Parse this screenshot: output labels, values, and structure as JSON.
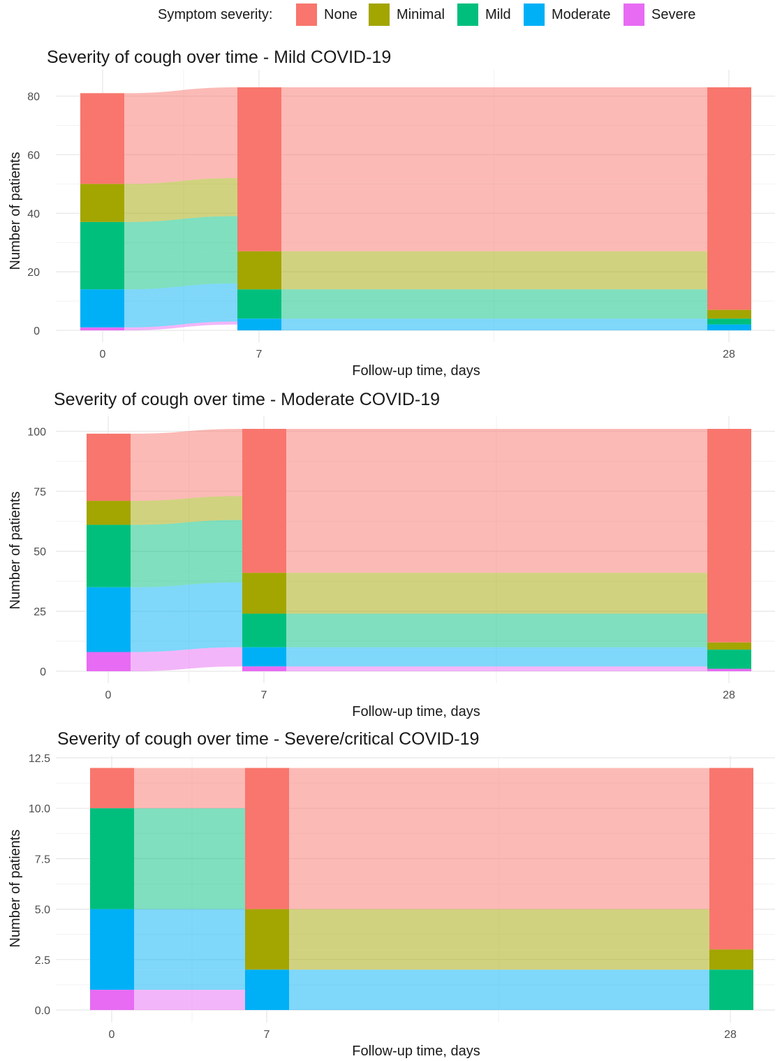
{
  "legend": {
    "title": "Symptom severity:",
    "items": [
      {
        "label": "None",
        "color": "#F8766D"
      },
      {
        "label": "Minimal",
        "color": "#A3A500"
      },
      {
        "label": "Mild",
        "color": "#00BF7D"
      },
      {
        "label": "Moderate",
        "color": "#00B0F6"
      },
      {
        "label": "Severe",
        "color": "#E76BF3"
      }
    ]
  },
  "chart_data": [
    {
      "type": "alluvial",
      "title": "Severity of cough over time - Mild COVID-19",
      "xlabel": "Follow-up time, days",
      "ylabel": "Number of patients",
      "x": [
        0,
        7,
        28
      ],
      "ylim": [
        0,
        83
      ],
      "yticks": [
        "0",
        "20",
        "40",
        "60",
        "80"
      ],
      "grid": true,
      "stacks": [
        {
          "day": 0,
          "None": 31,
          "Minimal": 13,
          "Mild": 23,
          "Moderate": 13,
          "Severe": 1
        },
        {
          "day": 7,
          "None": 56,
          "Minimal": 13,
          "Mild": 10,
          "Moderate": 4,
          "Severe": 0
        },
        {
          "day": 28,
          "None": 76,
          "Minimal": 3,
          "Mild": 2,
          "Moderate": 2,
          "Severe": 0
        }
      ]
    },
    {
      "type": "alluvial",
      "title": "Severity of cough over time - Moderate COVID-19",
      "xlabel": "Follow-up time, days",
      "ylabel": "Number of patients",
      "x": [
        0,
        7,
        28
      ],
      "ylim": [
        0,
        101
      ],
      "yticks": [
        "0",
        "25",
        "50",
        "75",
        "100"
      ],
      "grid": true,
      "stacks": [
        {
          "day": 0,
          "None": 28,
          "Minimal": 10,
          "Mild": 26,
          "Moderate": 27,
          "Severe": 8
        },
        {
          "day": 7,
          "None": 60,
          "Minimal": 17,
          "Mild": 14,
          "Moderate": 8,
          "Severe": 2
        },
        {
          "day": 28,
          "None": 89,
          "Minimal": 3,
          "Mild": 8,
          "Moderate": 0,
          "Severe": 1
        }
      ]
    },
    {
      "type": "alluvial",
      "title": "Severity of cough over time - Severe/critical COVID-19",
      "xlabel": "Follow-up time, days",
      "ylabel": "Number of patients",
      "x": [
        0,
        7,
        28
      ],
      "ylim": [
        0,
        12.5
      ],
      "yticks": [
        "0.0",
        "2.5",
        "5.0",
        "7.5",
        "10.0",
        "12.5"
      ],
      "grid": true,
      "stacks": [
        {
          "day": 0,
          "None": 2,
          "Minimal": 0,
          "Mild": 5,
          "Moderate": 4,
          "Severe": 1
        },
        {
          "day": 7,
          "None": 7,
          "Minimal": 3,
          "Mild": 0,
          "Moderate": 2,
          "Severe": 0
        },
        {
          "day": 28,
          "None": 9,
          "Minimal": 1,
          "Mild": 2,
          "Moderate": 0,
          "Severe": 0
        }
      ]
    }
  ]
}
